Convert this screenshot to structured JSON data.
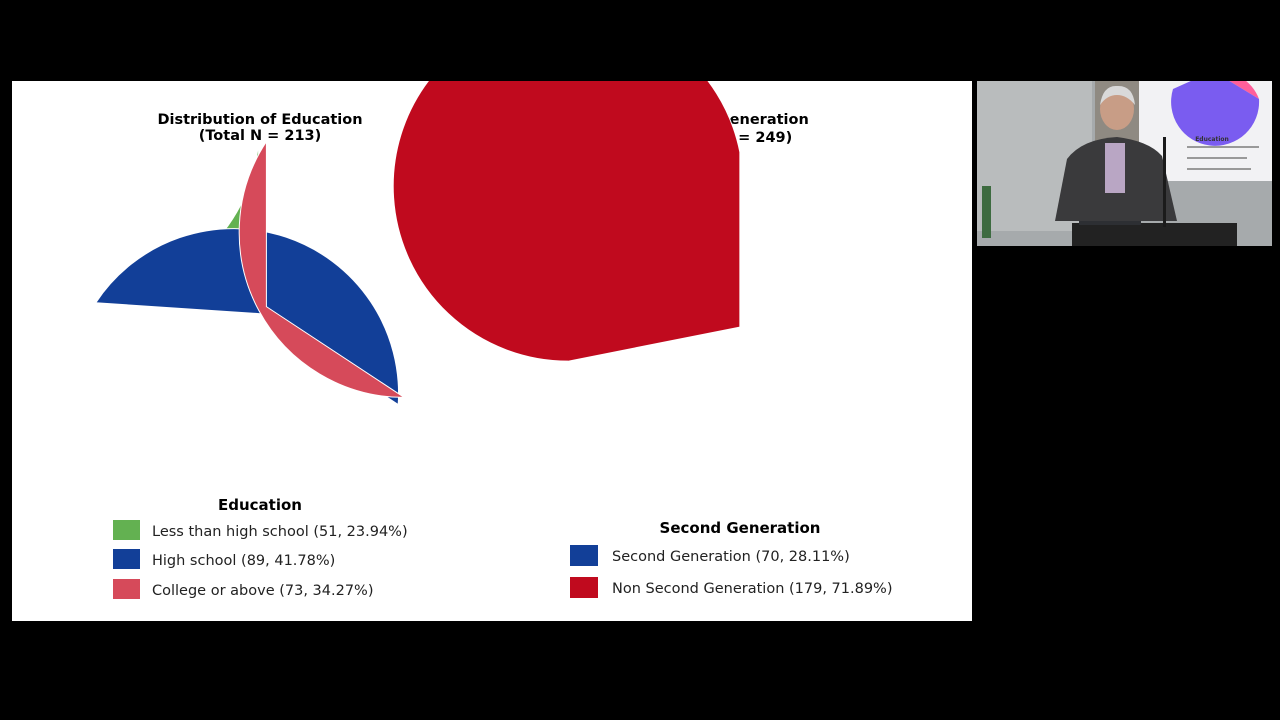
{
  "chart_data": [
    {
      "type": "pie",
      "title": "Distribution of Education",
      "subtitle": "(Total N = 213)",
      "legend_title": "Education",
      "legend_position": "bottom",
      "slices": [
        {
          "label": "Less than high school (51, 23.94%)",
          "value": 51,
          "color": "#63b151"
        },
        {
          "label": "High school (89, 41.78%)",
          "value": 89,
          "color": "#123f98"
        },
        {
          "label": "College or above (73, 34.27%)",
          "value": 73,
          "color": "#d64a5a"
        }
      ]
    },
    {
      "type": "pie",
      "title": "Second Generation",
      "subtitle": "(Total N = 249)",
      "legend_title": "Second Generation",
      "legend_position": "bottom",
      "slices": [
        {
          "label": "Second Generation (70, 28.11%)",
          "value": 70,
          "color": "#123f98"
        },
        {
          "label": "Non Second Generation (179, 71.89%)",
          "value": 179,
          "color": "#c00a1e"
        }
      ]
    }
  ],
  "video_inset": {
    "slide_legend_title": "Education"
  }
}
